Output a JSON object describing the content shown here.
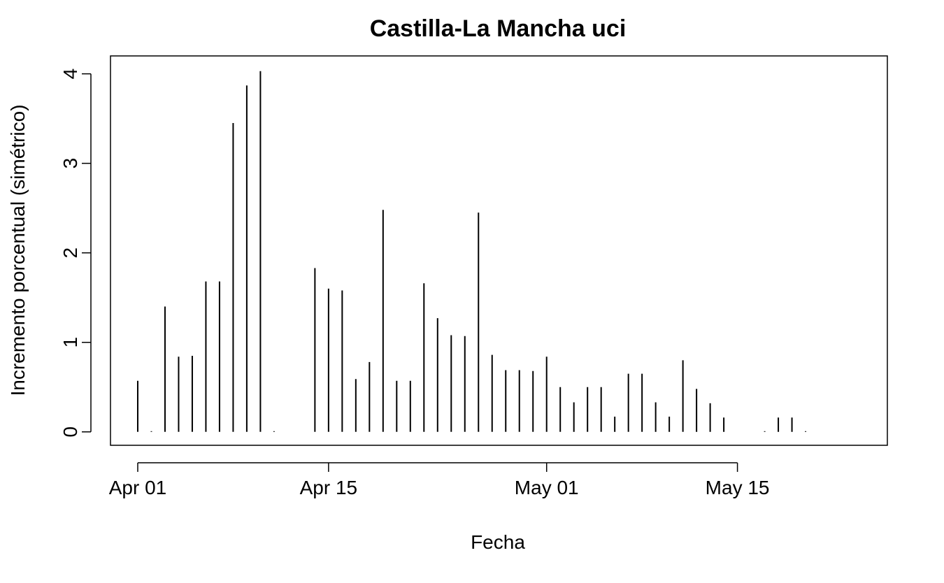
{
  "chart_data": {
    "type": "bar",
    "title": "Castilla-La Mancha uci",
    "xlabel": "Fecha",
    "ylabel": "Incremento porcentual (simétrico)",
    "ylim": [
      -0.15,
      4.2
    ],
    "xlim": [
      "2020-03-30",
      "2020-05-26"
    ],
    "y_ticks": [
      0,
      1,
      2,
      3,
      4
    ],
    "y_tick_labels": [
      "0",
      "1",
      "2",
      "3",
      "4"
    ],
    "x_ticks": [
      "2020-04-01",
      "2020-04-15",
      "2020-05-01",
      "2020-05-15"
    ],
    "x_tick_labels": [
      "Apr 01",
      "Apr 15",
      "May 01",
      "May 15"
    ],
    "grid": false,
    "legend": "none",
    "style": "vertical lines (type=h)",
    "series": [
      {
        "x": [
          "2020-04-01",
          "2020-04-02",
          "2020-04-03",
          "2020-04-04",
          "2020-04-05",
          "2020-04-06",
          "2020-04-07",
          "2020-04-08",
          "2020-04-09",
          "2020-04-10",
          "2020-04-11",
          "2020-04-14",
          "2020-04-15",
          "2020-04-16",
          "2020-04-17",
          "2020-04-18",
          "2020-04-19",
          "2020-04-20",
          "2020-04-21",
          "2020-04-22",
          "2020-04-23",
          "2020-04-24",
          "2020-04-25",
          "2020-04-26",
          "2020-04-27",
          "2020-04-28",
          "2020-04-29",
          "2020-04-30",
          "2020-05-01",
          "2020-05-02",
          "2020-05-03",
          "2020-05-04",
          "2020-05-05",
          "2020-05-06",
          "2020-05-07",
          "2020-05-08",
          "2020-05-09",
          "2020-05-10",
          "2020-05-11",
          "2020-05-12",
          "2020-05-13",
          "2020-05-14",
          "2020-05-17",
          "2020-05-18",
          "2020-05-19",
          "2020-05-20"
        ],
        "values": [
          0.57,
          0.0,
          1.4,
          0.84,
          0.85,
          1.68,
          1.68,
          3.45,
          3.87,
          4.03,
          0.0,
          1.83,
          1.6,
          1.58,
          0.59,
          0.78,
          2.48,
          0.57,
          0.57,
          1.66,
          1.27,
          1.08,
          1.07,
          2.45,
          0.86,
          0.69,
          0.69,
          0.68,
          0.84,
          0.5,
          0.33,
          0.5,
          0.5,
          0.17,
          0.65,
          0.65,
          0.33,
          0.17,
          0.8,
          0.48,
          0.32,
          0.16,
          0.0,
          0.16,
          0.16,
          0.0
        ]
      }
    ]
  }
}
